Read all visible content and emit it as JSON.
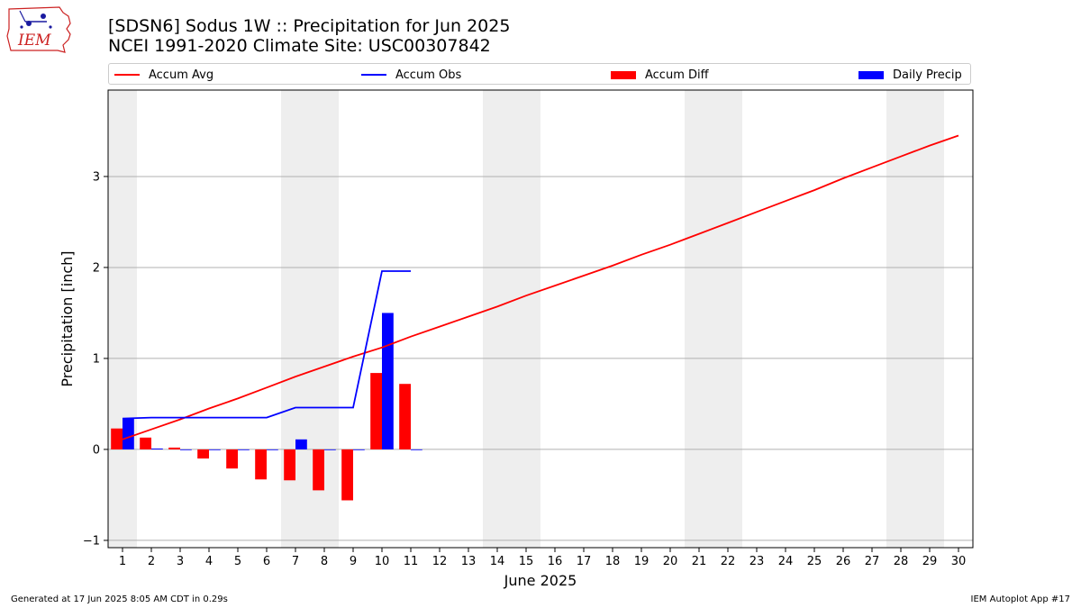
{
  "header": {
    "logo_text": "IEM",
    "title_line1": "[SDSN6] Sodus 1W :: Precipitation for Jun 2025",
    "title_line2": "NCEI 1991-2020 Climate Site: USC00307842"
  },
  "legend": [
    {
      "label": "Accum Avg",
      "color": "#ff0000",
      "kind": "line"
    },
    {
      "label": "Accum Obs",
      "color": "#0000ff",
      "kind": "line"
    },
    {
      "label": "Accum Diff",
      "color": "#ff0000",
      "kind": "bar"
    },
    {
      "label": "Daily Precip",
      "color": "#0000ff",
      "kind": "bar"
    }
  ],
  "chart_data": {
    "type": "bar",
    "title": "[SDSN6] Sodus 1W :: Precipitation for Jun 2025",
    "subtitle": "NCEI 1991-2020 Climate Site: USC00307842",
    "xlabel": "June 2025",
    "ylabel": "Precipitation [inch]",
    "xlim": [
      0.5,
      30.5
    ],
    "ylim": [
      -1.08,
      3.95
    ],
    "yticks": [
      -1,
      0,
      1,
      2,
      3
    ],
    "ytick_labels": [
      "−1",
      "0",
      "1",
      "2",
      "3"
    ],
    "x": [
      1,
      2,
      3,
      4,
      5,
      6,
      7,
      8,
      9,
      10,
      11,
      12,
      13,
      14,
      15,
      16,
      17,
      18,
      19,
      20,
      21,
      22,
      23,
      24,
      25,
      26,
      27,
      28,
      29,
      30
    ],
    "xtick_labels": [
      "1",
      "2",
      "3",
      "4",
      "5",
      "6",
      "7",
      "8",
      "9",
      "10",
      "11",
      "12",
      "13",
      "14",
      "15",
      "16",
      "17",
      "18",
      "19",
      "20",
      "21",
      "22",
      "23",
      "24",
      "25",
      "26",
      "27",
      "28",
      "29",
      "30"
    ],
    "weekend_shading": [
      [
        0.5,
        1.5
      ],
      [
        6.5,
        8.5
      ],
      [
        13.5,
        15.5
      ],
      [
        20.5,
        22.5
      ],
      [
        27.5,
        29.5
      ]
    ],
    "grid": true,
    "legend_position": "top",
    "series": [
      {
        "name": "Accum Avg",
        "type": "line",
        "color": "#ff0000",
        "x": [
          1,
          2,
          3,
          4,
          5,
          6,
          7,
          8,
          9,
          10,
          11,
          12,
          13,
          14,
          15,
          16,
          17,
          18,
          19,
          20,
          21,
          22,
          23,
          24,
          25,
          26,
          27,
          28,
          29,
          30
        ],
        "values": [
          0.11,
          0.22,
          0.33,
          0.45,
          0.56,
          0.68,
          0.8,
          0.91,
          1.02,
          1.12,
          1.24,
          1.35,
          1.46,
          1.57,
          1.69,
          1.8,
          1.91,
          2.02,
          2.14,
          2.25,
          2.37,
          2.49,
          2.61,
          2.73,
          2.85,
          2.98,
          3.1,
          3.22,
          3.34,
          3.45
        ]
      },
      {
        "name": "Accum Obs",
        "type": "line",
        "color": "#0000ff",
        "x": [
          1,
          2,
          3,
          4,
          5,
          6,
          7,
          8,
          9,
          10,
          11
        ],
        "values": [
          0.34,
          0.35,
          0.35,
          0.35,
          0.35,
          0.35,
          0.46,
          0.46,
          0.46,
          1.96,
          1.96
        ]
      },
      {
        "name": "Accum Diff",
        "type": "bar",
        "color": "#ff0000",
        "x": [
          1,
          2,
          3,
          4,
          5,
          6,
          7,
          8,
          9,
          10,
          11
        ],
        "values": [
          0.23,
          0.13,
          0.02,
          -0.1,
          -0.21,
          -0.33,
          -0.34,
          -0.45,
          -0.56,
          0.84,
          0.72
        ]
      },
      {
        "name": "Daily Precip",
        "type": "bar",
        "color": "#0000ff",
        "x": [
          1,
          2,
          3,
          4,
          5,
          6,
          7,
          8,
          9,
          10,
          11
        ],
        "values": [
          0.34,
          0.01,
          0.0,
          0.0,
          0.0,
          0.0,
          0.11,
          0.0,
          0.0,
          1.5,
          0.0
        ]
      }
    ]
  },
  "footer": {
    "left": "Generated at 17 Jun 2025 8:05 AM CDT in 0.29s",
    "right": "IEM Autoplot App #17"
  }
}
